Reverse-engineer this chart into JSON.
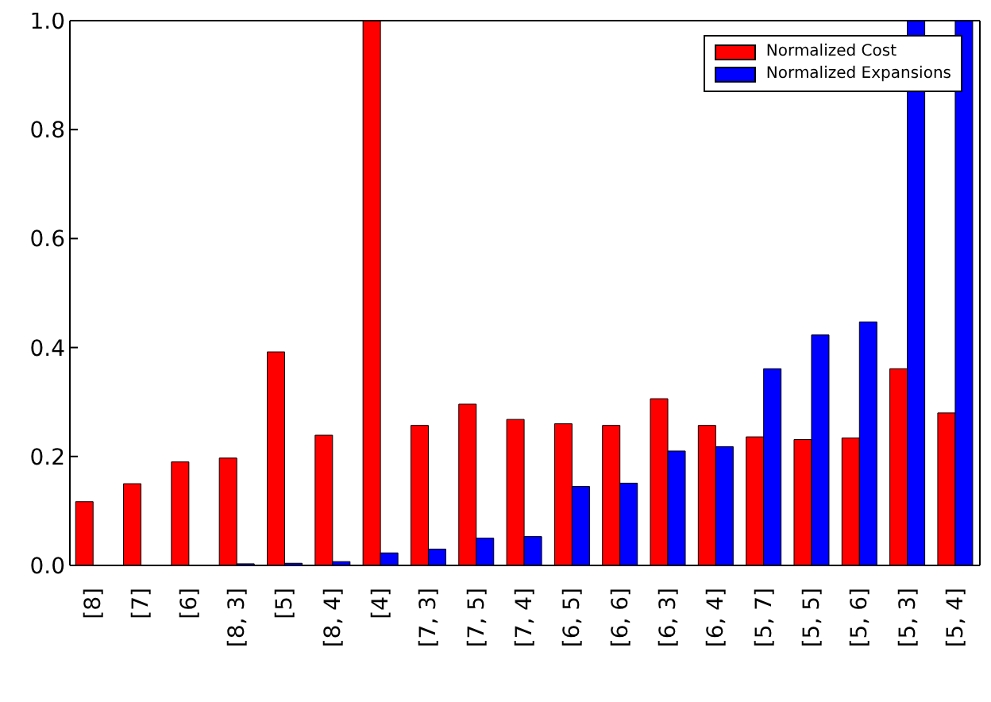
{
  "chart_data": {
    "type": "bar",
    "categories": [
      "[8]",
      "[7]",
      "[6]",
      "[8, 3]",
      "[5]",
      "[8, 4]",
      "[4]",
      "[7, 3]",
      "[7, 5]",
      "[7, 4]",
      "[6, 5]",
      "[6, 6]",
      "[6, 3]",
      "[6, 4]",
      "[5, 7]",
      "[5, 5]",
      "[5, 6]",
      "[5, 3]",
      "[5, 4]"
    ],
    "series": [
      {
        "name": "Normalized Cost",
        "color": "#ff0000",
        "values": [
          0.117,
          0.15,
          0.19,
          0.197,
          0.392,
          0.239,
          1.0,
          0.257,
          0.296,
          0.268,
          0.26,
          0.257,
          0.306,
          0.257,
          0.236,
          0.231,
          0.234,
          0.361,
          0.28
        ]
      },
      {
        "name": "Normalized Expansions",
        "color": "#0000ff",
        "values": [
          0,
          0,
          0,
          0.003,
          0.004,
          0.007,
          0.023,
          0.03,
          0.05,
          0.053,
          0.145,
          0.151,
          0.21,
          0.218,
          0.361,
          0.423,
          0.447,
          1.0,
          1.0
        ]
      }
    ],
    "ylim": [
      0,
      1
    ],
    "yticks": [
      {
        "value": 0,
        "label": "0.0"
      },
      {
        "value": 0.2,
        "label": "0.2"
      },
      {
        "value": 0.4,
        "label": "0.4"
      },
      {
        "value": 0.6,
        "label": "0.6"
      },
      {
        "value": 0.8,
        "label": "0.8"
      },
      {
        "value": 1,
        "label": "1.0"
      }
    ],
    "legend": "top right"
  }
}
